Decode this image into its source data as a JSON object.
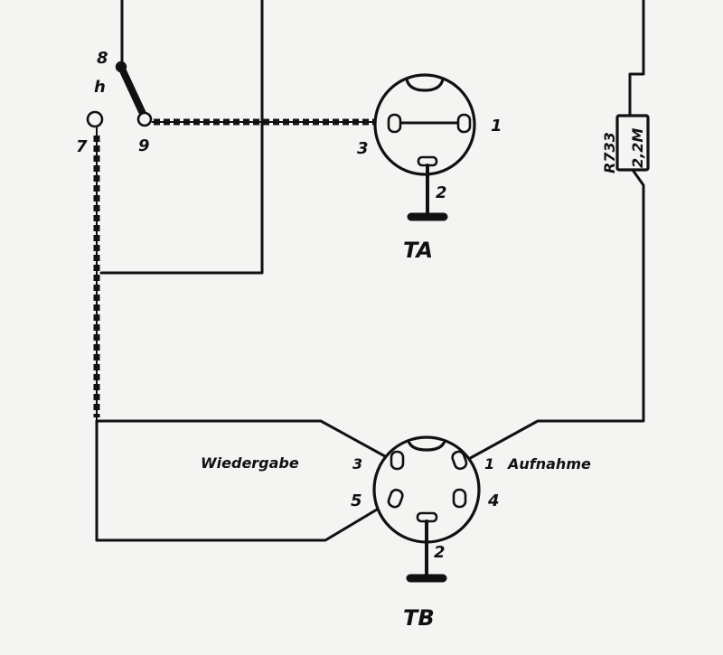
{
  "switch": {
    "contact_8": "8",
    "contact_h": "h",
    "contact_9": "9",
    "contact_7": "7"
  },
  "resistor": {
    "designator": "R733",
    "value": "2,2M"
  },
  "socket_ta": {
    "name": "TA",
    "pin_1": "1",
    "pin_2": "2",
    "pin_3": "3"
  },
  "socket_tb": {
    "name": "TB",
    "pin_1": "1",
    "pin_2": "2",
    "pin_3": "3",
    "pin_4": "4",
    "pin_5": "5",
    "label_playback": "Wiedergabe",
    "label_record": "Aufnahme"
  }
}
